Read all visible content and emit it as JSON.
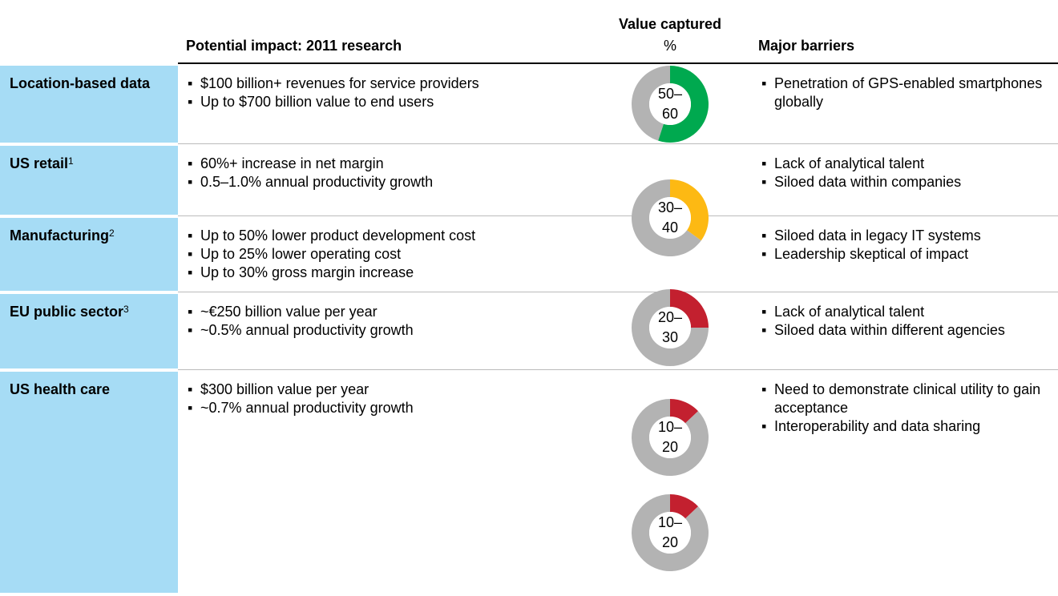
{
  "header": {
    "impact": "Potential impact: 2011 research",
    "value_title": "Value captured",
    "value_unit": "%",
    "barriers": "Major barriers"
  },
  "rows": [
    {
      "label": "Location-based data",
      "impacts": [
        "$100 billion+ revenues for service providers",
        "Up to $700 billion value to end users"
      ],
      "range": [
        "50–",
        "60"
      ],
      "share": 55,
      "color": "#00a94f",
      "barriers": [
        "Penetration of GPS-enabled smartphones globally"
      ]
    },
    {
      "label": "US retail",
      "note": "1",
      "impacts": [
        "60%+ increase in net margin",
        "0.5–1.0% annual productivity growth"
      ],
      "range": [
        "30–",
        "40"
      ],
      "share": 35,
      "color": "#fdb913",
      "barriers": [
        "Lack of analytical talent",
        "Siloed data within companies"
      ]
    },
    {
      "label": "Manufacturing",
      "note": "2",
      "impacts": [
        "Up to 50% lower product development cost",
        "Up to 25% lower operating cost",
        "Up to 30% gross margin increase"
      ],
      "range": [
        "20–",
        "30"
      ],
      "share": 25,
      "color": "#c3202f",
      "barriers": [
        "Siloed data in legacy IT systems",
        "Leadership skeptical of impact"
      ]
    },
    {
      "label": "EU public sector",
      "note": "3",
      "impacts": [
        "~€250 billion value per year",
        "~0.5% annual productivity growth"
      ],
      "range": [
        "10–",
        "20"
      ],
      "share": 13,
      "color": "#c3202f",
      "barriers": [
        "Lack of analytical talent",
        "Siloed data within different agencies"
      ]
    },
    {
      "label": "US health care",
      "impacts": [
        "$300 billion value per year",
        "~0.7% annual productivity growth"
      ],
      "range": [
        "10–",
        "20"
      ],
      "share": 13,
      "color": "#c3202f",
      "barriers": [
        "Need to demonstrate clinical utility to gain acceptance",
        "Interoperability and data sharing"
      ]
    }
  ]
}
